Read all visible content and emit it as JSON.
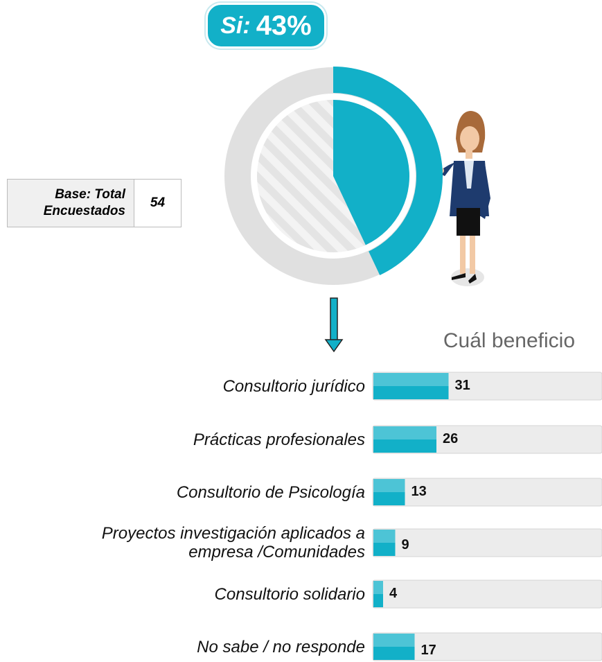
{
  "base": {
    "label": "Base: Total Encuestados",
    "value": "54"
  },
  "chart_data": [
    {
      "type": "donut",
      "title": "Si:",
      "values": [
        43
      ],
      "value_labels": [
        "43%"
      ],
      "color": "#12b0c8"
    },
    {
      "type": "hbar",
      "title": "Cuál beneficio",
      "color": "#12b0c8",
      "categories": [
        "Consultorio jurídico",
        "Prácticas profesionales",
        "Consultorio de Psicología",
        "Proyectos investigación aplicados a empresa /Comunidades",
        "Consultorio solidario",
        "No sabe / no responde"
      ],
      "values": [
        31,
        26,
        13,
        9,
        4,
        17
      ]
    }
  ]
}
